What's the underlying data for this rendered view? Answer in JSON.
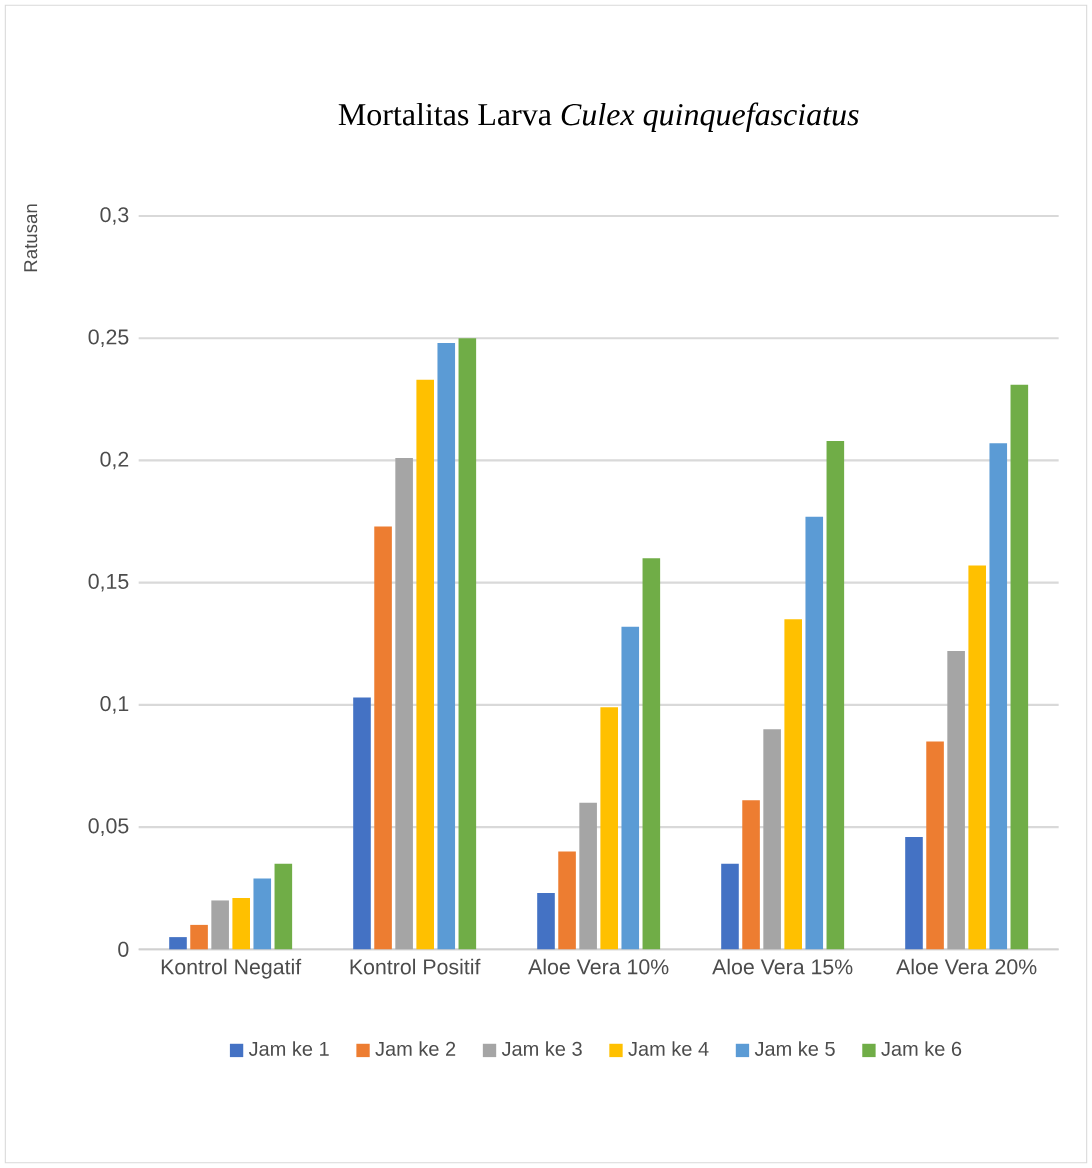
{
  "chart_data": {
    "type": "bar",
    "title": "Mortalitas Larva *Culex quinquefasciatus*",
    "ylabel": "Ratusan",
    "categories": [
      "Kontrol  Negatif",
      "Kontrol Positif",
      "Aloe Vera 10%",
      "Aloe Vera 15%",
      "Aloe Vera 20%"
    ],
    "series": [
      {
        "name": "Jam ke 1",
        "color": "#4472c4",
        "values": [
          0.005,
          0.103,
          0.023,
          0.035,
          0.046
        ]
      },
      {
        "name": "Jam ke 2",
        "color": "#ed7d31",
        "values": [
          0.01,
          0.173,
          0.04,
          0.061,
          0.085
        ]
      },
      {
        "name": "Jam ke 3",
        "color": "#a5a5a5",
        "values": [
          0.02,
          0.201,
          0.06,
          0.09,
          0.122
        ]
      },
      {
        "name": "Jam ke 4",
        "color": "#ffc000",
        "values": [
          0.021,
          0.233,
          0.099,
          0.135,
          0.157
        ]
      },
      {
        "name": "Jam ke 5",
        "color": "#5b9bd5",
        "values": [
          0.029,
          0.248,
          0.132,
          0.177,
          0.207
        ]
      },
      {
        "name": "Jam ke 6",
        "color": "#70ad47",
        "values": [
          0.035,
          0.25,
          0.16,
          0.208,
          0.231
        ]
      }
    ],
    "ylim": [
      0,
      0.3
    ],
    "yticks": [
      0,
      {
        "value": 0.05,
        "label": "0,05"
      },
      {
        "value": 0.1,
        "label": "0,1"
      },
      {
        "value": 0.15,
        "label": "0,15"
      },
      {
        "value": 0.2,
        "label": "0,2"
      },
      {
        "value": 0.25,
        "label": "0,25"
      },
      {
        "value": 0.3,
        "label": "0,3"
      }
    ],
    "grid": "y",
    "legend": "bottom"
  }
}
